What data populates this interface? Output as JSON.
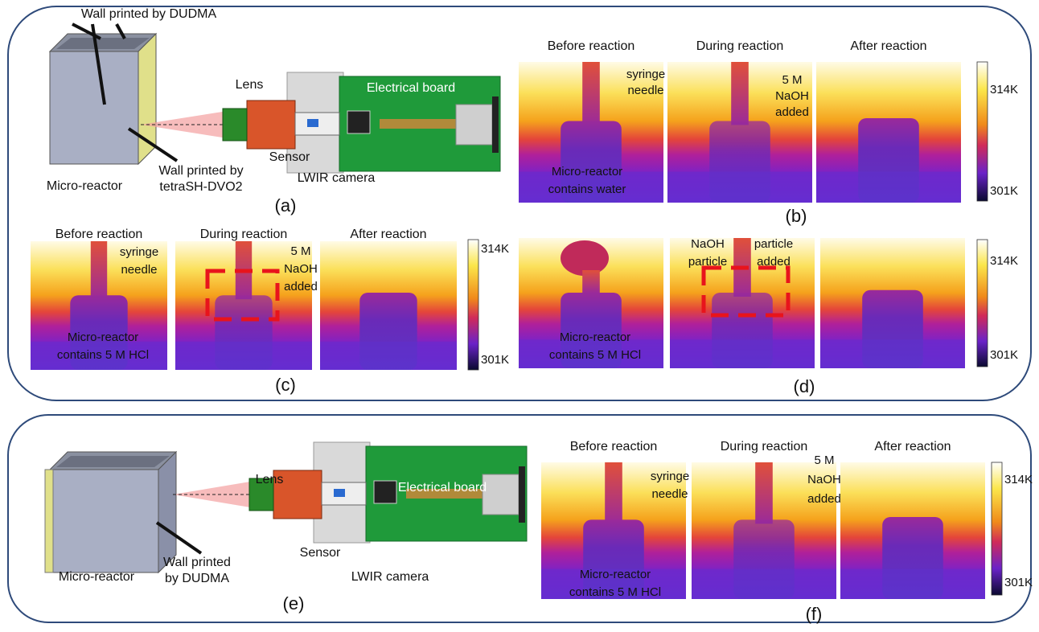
{
  "panel_a": {
    "wall_top": "Wall printed by DUDMA",
    "lens": "Lens",
    "board": "Electrical board",
    "sensor": "Sensor",
    "camera": "LWIR camera",
    "reactor": "Micro-reactor",
    "wall_side": [
      "Wall printed by",
      "tetraSH-DVO2"
    ],
    "label": "(a)"
  },
  "panel_b": {
    "headers": [
      "Before reaction",
      "During reaction",
      "After reaction"
    ],
    "needle": [
      "syringe",
      "needle"
    ],
    "added": [
      "5 M",
      "NaOH",
      "added"
    ],
    "reactor": [
      "Micro-reactor",
      "contains water"
    ],
    "scale": [
      "314K",
      "301K"
    ],
    "label": "(b)"
  },
  "panel_c": {
    "headers": [
      "Before reaction",
      "During reaction",
      "After reaction"
    ],
    "needle": [
      "syringe",
      "needle"
    ],
    "added": [
      "5 M",
      "NaOH",
      "added"
    ],
    "reactor": [
      "Micro-reactor",
      "contains 5 M HCl"
    ],
    "scale": [
      "314K",
      "301K"
    ],
    "label": "(c)"
  },
  "panel_d": {
    "particle": [
      "NaOH",
      "particle"
    ],
    "added": [
      "particle",
      "added"
    ],
    "reactor": [
      "Micro-reactor",
      "contains 5 M HCl"
    ],
    "scale": [
      "314K",
      "301K"
    ],
    "label": "(d)"
  },
  "panel_e": {
    "lens": "Lens",
    "board": "Electrical board",
    "sensor": "Sensor",
    "camera": "LWIR camera",
    "reactor": "Micro-reactor",
    "wall": [
      "Wall printed",
      "by DUDMA"
    ],
    "label": "(e)"
  },
  "panel_f": {
    "headers": [
      "Before reaction",
      "During reaction",
      "After reaction"
    ],
    "needle": [
      "syringe",
      "needle"
    ],
    "added": [
      "5 M",
      "NaOH",
      "added"
    ],
    "reactor": [
      "Micro-reactor",
      "contains 5 M HCl"
    ],
    "scale": [
      "314K",
      "301K"
    ],
    "label": "(f)"
  }
}
